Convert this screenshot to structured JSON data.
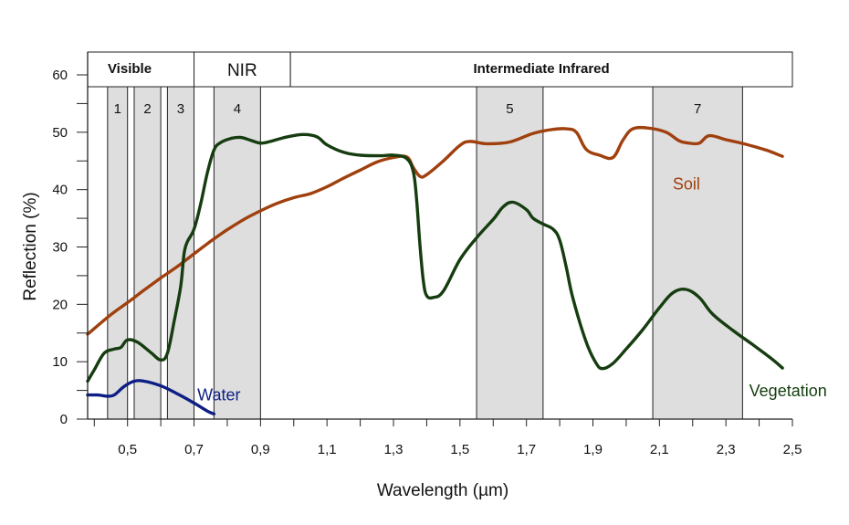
{
  "chart_data": {
    "type": "line",
    "title": "",
    "xlabel": "Wavelength (µm)",
    "ylabel": "Reflection (%)",
    "xlim": [
      0.38,
      2.5
    ],
    "ylim": [
      0,
      60
    ],
    "x_ticks": [
      {
        "value": 0.5,
        "label": "0,5"
      },
      {
        "value": 0.7,
        "label": "0,7"
      },
      {
        "value": 0.9,
        "label": "0,9"
      },
      {
        "value": 1.1,
        "label": "1,1"
      },
      {
        "value": 1.3,
        "label": "1,3"
      },
      {
        "value": 1.5,
        "label": "1,5"
      },
      {
        "value": 1.7,
        "label": "1,7"
      },
      {
        "value": 1.9,
        "label": "1,9"
      },
      {
        "value": 2.1,
        "label": "2,1"
      },
      {
        "value": 2.3,
        "label": "2,3"
      },
      {
        "value": 2.5,
        "label": "2,5"
      }
    ],
    "y_ticks": [
      {
        "value": 0,
        "label": "0"
      },
      {
        "value": 10,
        "label": "10"
      },
      {
        "value": 20,
        "label": "20"
      },
      {
        "value": 30,
        "label": "30"
      },
      {
        "value": 40,
        "label": "40"
      },
      {
        "value": 50,
        "label": "50"
      },
      {
        "value": 60,
        "label": "60"
      }
    ],
    "grid": false,
    "regions": [
      {
        "label": "Visible",
        "from": 0.38,
        "to": 0.7,
        "bold": true
      },
      {
        "label": "NIR",
        "from": 0.7,
        "to": 0.99,
        "bold": false
      },
      {
        "label": "Intermediate Infrared",
        "from": 0.99,
        "to": 2.5,
        "bold": true
      }
    ],
    "bands": [
      {
        "label": "1",
        "from": 0.44,
        "to": 0.5
      },
      {
        "label": "2",
        "from": 0.52,
        "to": 0.6
      },
      {
        "label": "3",
        "from": 0.62,
        "to": 0.7
      },
      {
        "label": "4",
        "from": 0.76,
        "to": 0.9
      },
      {
        "label": "5",
        "from": 1.55,
        "to": 1.75
      },
      {
        "label": "7",
        "from": 2.08,
        "to": 2.35
      }
    ],
    "series": [
      {
        "name": "Soil",
        "color": "#a0400e",
        "label_at": [
          2.14,
          40
        ],
        "points": [
          [
            0.38,
            14.8
          ],
          [
            0.45,
            18.2
          ],
          [
            0.5,
            20.3
          ],
          [
            0.55,
            22.5
          ],
          [
            0.6,
            24.6
          ],
          [
            0.65,
            26.6
          ],
          [
            0.7,
            28.8
          ],
          [
            0.75,
            31
          ],
          [
            0.8,
            33
          ],
          [
            0.85,
            34.8
          ],
          [
            0.9,
            36.3
          ],
          [
            0.95,
            37.6
          ],
          [
            1.0,
            38.6
          ],
          [
            1.05,
            39.3
          ],
          [
            1.1,
            40.5
          ],
          [
            1.15,
            42
          ],
          [
            1.2,
            43.4
          ],
          [
            1.25,
            44.8
          ],
          [
            1.3,
            45.6
          ],
          [
            1.34,
            45.7
          ],
          [
            1.36,
            43.8
          ],
          [
            1.38,
            42.3
          ],
          [
            1.4,
            42.6
          ],
          [
            1.45,
            45
          ],
          [
            1.5,
            47.7
          ],
          [
            1.53,
            48.4
          ],
          [
            1.58,
            48
          ],
          [
            1.65,
            48.3
          ],
          [
            1.72,
            49.8
          ],
          [
            1.78,
            50.5
          ],
          [
            1.82,
            50.6
          ],
          [
            1.85,
            50
          ],
          [
            1.88,
            47
          ],
          [
            1.92,
            46
          ],
          [
            1.96,
            45.6
          ],
          [
            1.99,
            48.6
          ],
          [
            2.02,
            50.6
          ],
          [
            2.07,
            50.7
          ],
          [
            2.12,
            50
          ],
          [
            2.16,
            48.5
          ],
          [
            2.19,
            48.1
          ],
          [
            2.22,
            48.1
          ],
          [
            2.25,
            49.4
          ],
          [
            2.3,
            48.7
          ],
          [
            2.36,
            47.9
          ],
          [
            2.42,
            46.9
          ],
          [
            2.47,
            45.8
          ]
        ]
      },
      {
        "name": "Vegetation",
        "color": "#153d0f",
        "label_at": [
          2.37,
          4
        ],
        "points": [
          [
            0.38,
            6.6
          ],
          [
            0.4,
            8.6
          ],
          [
            0.43,
            11.5
          ],
          [
            0.46,
            12.2
          ],
          [
            0.48,
            12.5
          ],
          [
            0.5,
            13.8
          ],
          [
            0.53,
            13.4
          ],
          [
            0.57,
            11.6
          ],
          [
            0.6,
            10.3
          ],
          [
            0.62,
            11.5
          ],
          [
            0.64,
            17
          ],
          [
            0.66,
            23.2
          ],
          [
            0.67,
            28.8
          ],
          [
            0.68,
            30.9
          ],
          [
            0.7,
            33.1
          ],
          [
            0.72,
            37.5
          ],
          [
            0.74,
            42.9
          ],
          [
            0.76,
            46.9
          ],
          [
            0.78,
            48.2
          ],
          [
            0.81,
            48.9
          ],
          [
            0.84,
            49.1
          ],
          [
            0.87,
            48.6
          ],
          [
            0.9,
            48.1
          ],
          [
            0.93,
            48.4
          ],
          [
            0.98,
            49.2
          ],
          [
            1.03,
            49.6
          ],
          [
            1.07,
            49.2
          ],
          [
            1.1,
            47.8
          ],
          [
            1.15,
            46.5
          ],
          [
            1.2,
            46
          ],
          [
            1.26,
            45.9
          ],
          [
            1.3,
            46
          ],
          [
            1.34,
            45.4
          ],
          [
            1.36,
            43
          ],
          [
            1.37,
            38
          ],
          [
            1.38,
            30
          ],
          [
            1.39,
            24
          ],
          [
            1.4,
            21.5
          ],
          [
            1.42,
            21.2
          ],
          [
            1.45,
            22.3
          ],
          [
            1.5,
            27.8
          ],
          [
            1.55,
            31.6
          ],
          [
            1.6,
            34.8
          ],
          [
            1.63,
            37
          ],
          [
            1.66,
            37.8
          ],
          [
            1.7,
            36.5
          ],
          [
            1.72,
            35
          ],
          [
            1.75,
            34
          ],
          [
            1.78,
            33.1
          ],
          [
            1.8,
            31.2
          ],
          [
            1.82,
            26.4
          ],
          [
            1.84,
            21
          ],
          [
            1.88,
            13.4
          ],
          [
            1.91,
            9.7
          ],
          [
            1.93,
            8.8
          ],
          [
            1.96,
            9.7
          ],
          [
            2.0,
            12.2
          ],
          [
            2.05,
            15.6
          ],
          [
            2.1,
            19.4
          ],
          [
            2.14,
            22
          ],
          [
            2.18,
            22.6
          ],
          [
            2.22,
            21.2
          ],
          [
            2.26,
            18.3
          ],
          [
            2.32,
            15.5
          ],
          [
            2.38,
            13
          ],
          [
            2.44,
            10.4
          ],
          [
            2.47,
            8.9
          ]
        ]
      },
      {
        "name": "Water",
        "color": "#0d1f85",
        "label_at": [
          0.71,
          3.3
        ],
        "points": [
          [
            0.38,
            4.2
          ],
          [
            0.41,
            4.2
          ],
          [
            0.44,
            4
          ],
          [
            0.46,
            4.2
          ],
          [
            0.49,
            5.7
          ],
          [
            0.52,
            6.6
          ],
          [
            0.55,
            6.6
          ],
          [
            0.6,
            5.8
          ],
          [
            0.65,
            4.4
          ],
          [
            0.7,
            2.8
          ],
          [
            0.74,
            1.4
          ],
          [
            0.76,
            0.9
          ]
        ]
      }
    ]
  }
}
